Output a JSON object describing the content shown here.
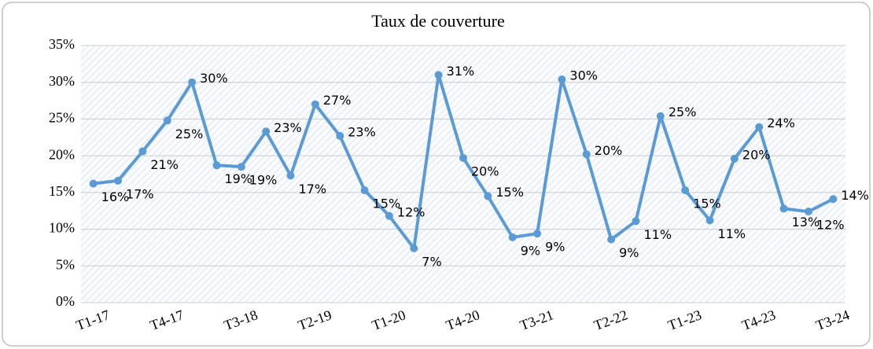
{
  "chart_data": {
    "type": "line",
    "title": "Taux de couverture",
    "categories": [
      "T1-17",
      null,
      null,
      "T4-17",
      null,
      null,
      "T3-18",
      null,
      null,
      "T2-19",
      null,
      null,
      "T1-20",
      null,
      null,
      "T4-20",
      null,
      null,
      "T3-21",
      null,
      null,
      "T2-22",
      null,
      null,
      "T1-23",
      null,
      null,
      "T4-23",
      null,
      null,
      "T3-24"
    ],
    "series": [
      {
        "name": "Taux de couverture",
        "color": "#5b9bd5",
        "values": [
          16.2,
          16.6,
          20.6,
          24.8,
          30.0,
          18.7,
          18.5,
          23.3,
          17.3,
          27.0,
          22.7,
          15.3,
          11.8,
          7.4,
          31.0,
          19.7,
          14.5,
          8.9,
          9.4,
          30.4,
          20.2,
          8.6,
          11.1,
          25.4,
          15.3,
          11.2,
          19.6,
          23.9,
          12.8,
          12.4,
          14.1
        ],
        "value_labels": [
          "16%",
          "17%",
          "21%",
          "25%",
          "30%",
          "19%",
          "19%",
          "23%",
          "17%",
          "27%",
          "23%",
          "15%",
          "12%",
          "7%",
          "31%",
          "20%",
          "15%",
          "9%",
          "9%",
          "30%",
          "20%",
          "9%",
          "11%",
          "25%",
          "15%",
          "11%",
          "20%",
          "24%",
          "13%",
          "12%",
          "14%"
        ]
      }
    ],
    "ylim": [
      0,
      35
    ],
    "yticks": [
      {
        "value": 0,
        "label": "0%"
      },
      {
        "value": 5,
        "label": "5%"
      },
      {
        "value": 10,
        "label": "10%"
      },
      {
        "value": 15,
        "label": "15%"
      },
      {
        "value": 20,
        "label": "20%"
      },
      {
        "value": 25,
        "label": "25%"
      },
      {
        "value": 30,
        "label": "30%"
      },
      {
        "value": 35,
        "label": "35%"
      }
    ],
    "grid": true
  }
}
